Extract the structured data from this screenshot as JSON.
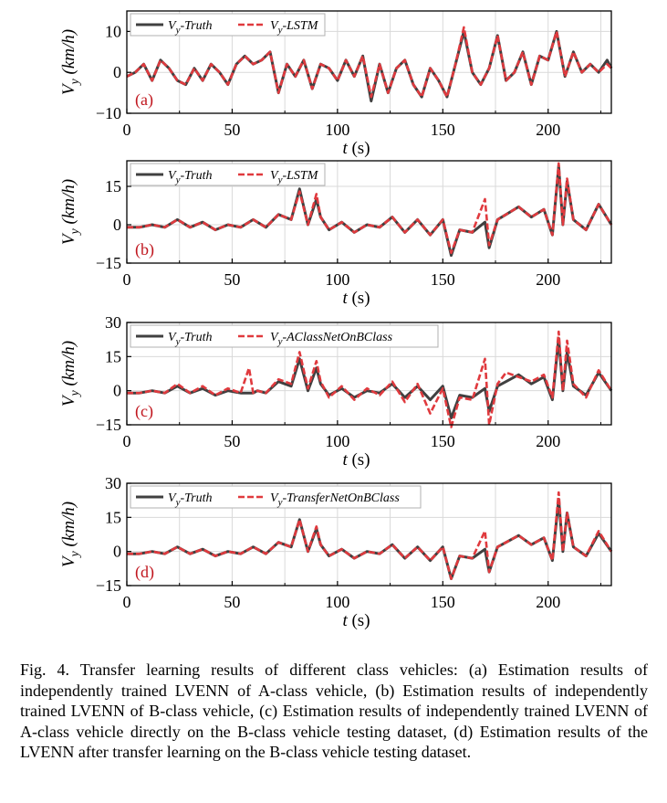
{
  "caption": "Fig. 4.   Transfer learning results of different class vehicles: (a) Estimation results of independently trained LVENN of A-class vehicle, (b) Estimation results of independently trained LVENN of B-class vehicle, (c) Estimation results of independently trained LVENN of A-class vehicle directly on the B-class vehicle testing dataset, (d) Estimation results of the LVENN after transfer learning on the B-class vehicle testing dataset.",
  "colors": {
    "truth": "#404040",
    "estimate": "#e03a3e",
    "grid": "#d9d9d9",
    "panel_tag": "#c0161e"
  },
  "chart_data": [
    {
      "type": "line",
      "panel": "(a)",
      "xlabel": "t (s)",
      "ylabel": "Vy (km/h)",
      "xlim": [
        0,
        230
      ],
      "ylim": [
        -10,
        15
      ],
      "xticks": [
        0,
        50,
        100,
        150,
        200
      ],
      "yticks": [
        -10,
        0,
        10
      ],
      "grid": true,
      "legend_position": "top-left",
      "series": [
        {
          "name": "Vy-Truth",
          "style": "solid",
          "x": [
            0,
            4,
            8,
            12,
            16,
            20,
            24,
            28,
            32,
            36,
            40,
            44,
            48,
            52,
            56,
            60,
            64,
            68,
            72,
            76,
            80,
            84,
            88,
            92,
            96,
            100,
            104,
            108,
            112,
            116,
            120,
            124,
            128,
            132,
            136,
            140,
            144,
            148,
            152,
            156,
            160,
            164,
            168,
            172,
            176,
            180,
            184,
            188,
            192,
            196,
            200,
            204,
            208,
            212,
            216,
            220,
            224,
            228,
            230
          ],
          "y": [
            -1,
            0,
            2,
            -2,
            3,
            1,
            -2,
            -3,
            1,
            -2,
            2,
            0,
            -3,
            2,
            4,
            2,
            3,
            5,
            -5,
            2,
            -1,
            3,
            -4,
            2,
            1,
            -2,
            3,
            -1,
            4,
            -7,
            2,
            -5,
            1,
            3,
            -3,
            -6,
            1,
            -2,
            -6,
            2,
            10,
            0,
            -3,
            1,
            9,
            -2,
            0,
            5,
            -3,
            4,
            3,
            10,
            -1,
            5,
            0,
            2,
            0,
            3,
            1
          ]
        },
        {
          "name": "Vy-LSTM",
          "style": "dashed",
          "x": [
            0,
            4,
            8,
            12,
            16,
            20,
            24,
            28,
            32,
            36,
            40,
            44,
            48,
            52,
            56,
            60,
            64,
            68,
            72,
            76,
            80,
            84,
            88,
            92,
            96,
            100,
            104,
            108,
            112,
            116,
            120,
            124,
            128,
            132,
            136,
            140,
            144,
            148,
            152,
            156,
            160,
            164,
            168,
            172,
            176,
            180,
            184,
            188,
            192,
            196,
            200,
            204,
            208,
            212,
            216,
            220,
            224,
            228,
            230
          ],
          "y": [
            -1,
            0,
            2,
            -2,
            3,
            1,
            -2,
            -3,
            1,
            -2,
            2,
            0,
            -3,
            2,
            4,
            2,
            3,
            5,
            -5,
            2,
            -1,
            3,
            -4,
            2,
            1,
            -2,
            3,
            -1,
            4,
            -6,
            2,
            -5,
            1,
            3,
            -3,
            -6,
            1,
            -2,
            -6,
            2,
            11,
            0,
            -3,
            1,
            9,
            -2,
            0,
            5,
            -3,
            4,
            3,
            10,
            -1,
            5,
            0,
            2,
            0,
            2,
            1
          ]
        }
      ]
    },
    {
      "type": "line",
      "panel": "(b)",
      "xlabel": "t (s)",
      "ylabel": "Vy (km/h)",
      "xlim": [
        0,
        230
      ],
      "ylim": [
        -15,
        25
      ],
      "xticks": [
        0,
        50,
        100,
        150,
        200
      ],
      "yticks": [
        -15,
        0,
        15
      ],
      "grid": true,
      "legend_position": "top-left",
      "series": [
        {
          "name": "Vy-Truth",
          "style": "solid",
          "x": [
            0,
            6,
            12,
            18,
            24,
            30,
            36,
            42,
            48,
            54,
            60,
            66,
            72,
            78,
            82,
            86,
            90,
            92,
            96,
            102,
            108,
            114,
            120,
            126,
            132,
            138,
            144,
            150,
            154,
            158,
            164,
            170,
            172,
            176,
            180,
            186,
            192,
            198,
            202,
            205,
            207,
            209,
            212,
            218,
            224,
            230
          ],
          "y": [
            -1,
            -1,
            0,
            -1,
            2,
            -1,
            1,
            -2,
            0,
            -1,
            2,
            -1,
            4,
            2,
            14,
            0,
            10,
            3,
            -2,
            1,
            -3,
            0,
            -1,
            3,
            -3,
            2,
            -4,
            2,
            -12,
            -2,
            -3,
            1,
            -9,
            2,
            4,
            7,
            3,
            6,
            -4,
            23,
            0,
            17,
            2,
            -2,
            8,
            0
          ]
        },
        {
          "name": "Vy-LSTM",
          "style": "dashed",
          "x": [
            0,
            6,
            12,
            18,
            24,
            30,
            36,
            42,
            48,
            54,
            60,
            66,
            72,
            78,
            82,
            86,
            90,
            92,
            96,
            102,
            108,
            114,
            120,
            126,
            132,
            138,
            144,
            150,
            154,
            158,
            164,
            170,
            172,
            176,
            180,
            186,
            192,
            198,
            202,
            205,
            207,
            209,
            212,
            218,
            224,
            230
          ],
          "y": [
            -1,
            -1,
            0,
            -1,
            2,
            -1,
            1,
            -2,
            0,
            -1,
            2,
            -1,
            4,
            2,
            13,
            0,
            12,
            3,
            -2,
            1,
            -3,
            0,
            -1,
            3,
            -3,
            2,
            -4,
            2,
            -11,
            -2,
            -3,
            10,
            -8,
            2,
            4,
            7,
            3,
            6,
            -4,
            24,
            0,
            18,
            2,
            -2,
            8,
            0
          ]
        }
      ]
    },
    {
      "type": "line",
      "panel": "(c)",
      "xlabel": "t (s)",
      "ylabel": "Vy (km/h)",
      "xlim": [
        0,
        230
      ],
      "ylim": [
        -15,
        30
      ],
      "xticks": [
        0,
        50,
        100,
        150,
        200
      ],
      "yticks": [
        -15,
        0,
        15,
        30
      ],
      "grid": true,
      "legend_position": "top-left",
      "series": [
        {
          "name": "Vy-Truth",
          "style": "solid",
          "x": [
            0,
            6,
            12,
            18,
            24,
            30,
            36,
            42,
            48,
            54,
            58,
            60,
            62,
            66,
            72,
            78,
            82,
            86,
            90,
            92,
            96,
            102,
            108,
            114,
            120,
            126,
            132,
            138,
            144,
            150,
            154,
            158,
            164,
            170,
            172,
            176,
            180,
            186,
            192,
            198,
            202,
            205,
            207,
            209,
            212,
            218,
            224,
            230
          ],
          "y": [
            -1,
            -1,
            0,
            -1,
            2,
            -1,
            1,
            -2,
            0,
            -1,
            -1,
            -1,
            0,
            -1,
            4,
            2,
            14,
            0,
            10,
            3,
            -2,
            1,
            -3,
            0,
            -1,
            3,
            -3,
            2,
            -4,
            2,
            -12,
            -2,
            -3,
            1,
            -9,
            2,
            4,
            7,
            3,
            6,
            -4,
            23,
            0,
            17,
            2,
            -2,
            8,
            0
          ]
        },
        {
          "name": "Vy-AClassNetOnBClass",
          "style": "dashed",
          "x": [
            0,
            6,
            12,
            18,
            24,
            30,
            36,
            42,
            48,
            54,
            58,
            60,
            62,
            66,
            72,
            78,
            82,
            86,
            90,
            92,
            96,
            102,
            108,
            114,
            120,
            126,
            132,
            138,
            144,
            150,
            154,
            158,
            164,
            170,
            172,
            176,
            180,
            186,
            192,
            198,
            202,
            205,
            207,
            209,
            212,
            218,
            224,
            230
          ],
          "y": [
            -1,
            -1,
            0,
            -1,
            3,
            -1,
            2,
            -2,
            1,
            -1,
            10,
            -1,
            0,
            -1,
            5,
            3,
            17,
            1,
            13,
            4,
            -3,
            2,
            -4,
            1,
            -2,
            4,
            -5,
            3,
            -10,
            1,
            -16,
            -3,
            -4,
            14,
            -15,
            3,
            8,
            6,
            4,
            7,
            -3,
            26,
            0,
            22,
            3,
            -3,
            9,
            0
          ]
        }
      ]
    },
    {
      "type": "line",
      "panel": "(d)",
      "xlabel": "t (s)",
      "ylabel": "Vy (km/h)",
      "xlim": [
        0,
        230
      ],
      "ylim": [
        -15,
        30
      ],
      "xticks": [
        0,
        50,
        100,
        150,
        200
      ],
      "yticks": [
        -15,
        0,
        15,
        30
      ],
      "grid": true,
      "legend_position": "top-left",
      "series": [
        {
          "name": "Vy-Truth",
          "style": "solid",
          "x": [
            0,
            6,
            12,
            18,
            24,
            30,
            36,
            42,
            48,
            54,
            60,
            66,
            72,
            78,
            82,
            86,
            90,
            92,
            96,
            102,
            108,
            114,
            120,
            126,
            132,
            138,
            144,
            150,
            154,
            158,
            164,
            170,
            172,
            176,
            180,
            186,
            192,
            198,
            202,
            205,
            207,
            209,
            212,
            218,
            224,
            230
          ],
          "y": [
            -1,
            -1,
            0,
            -1,
            2,
            -1,
            1,
            -2,
            0,
            -1,
            2,
            -1,
            4,
            2,
            14,
            0,
            10,
            3,
            -2,
            1,
            -3,
            0,
            -1,
            3,
            -3,
            2,
            -4,
            2,
            -12,
            -2,
            -3,
            1,
            -9,
            2,
            4,
            7,
            3,
            6,
            -4,
            23,
            0,
            17,
            2,
            -2,
            8,
            0
          ]
        },
        {
          "name": "Vy-TransferNetOnBClass",
          "style": "dashed",
          "x": [
            0,
            6,
            12,
            18,
            24,
            30,
            36,
            42,
            48,
            54,
            60,
            66,
            72,
            78,
            82,
            86,
            90,
            92,
            96,
            102,
            108,
            114,
            120,
            126,
            132,
            138,
            144,
            150,
            154,
            158,
            164,
            170,
            172,
            176,
            180,
            186,
            192,
            198,
            202,
            205,
            207,
            209,
            212,
            218,
            224,
            230
          ],
          "y": [
            -1,
            -1,
            0,
            -1,
            2,
            -1,
            1,
            -2,
            0,
            -1,
            2,
            -1,
            4,
            2,
            14,
            0,
            11,
            3,
            -2,
            1,
            -3,
            0,
            -1,
            3,
            -3,
            2,
            -4,
            2,
            -12,
            -2,
            -3,
            9,
            -9,
            2,
            4,
            7,
            3,
            6,
            -4,
            26,
            0,
            17,
            2,
            -2,
            9,
            0
          ]
        }
      ]
    }
  ]
}
